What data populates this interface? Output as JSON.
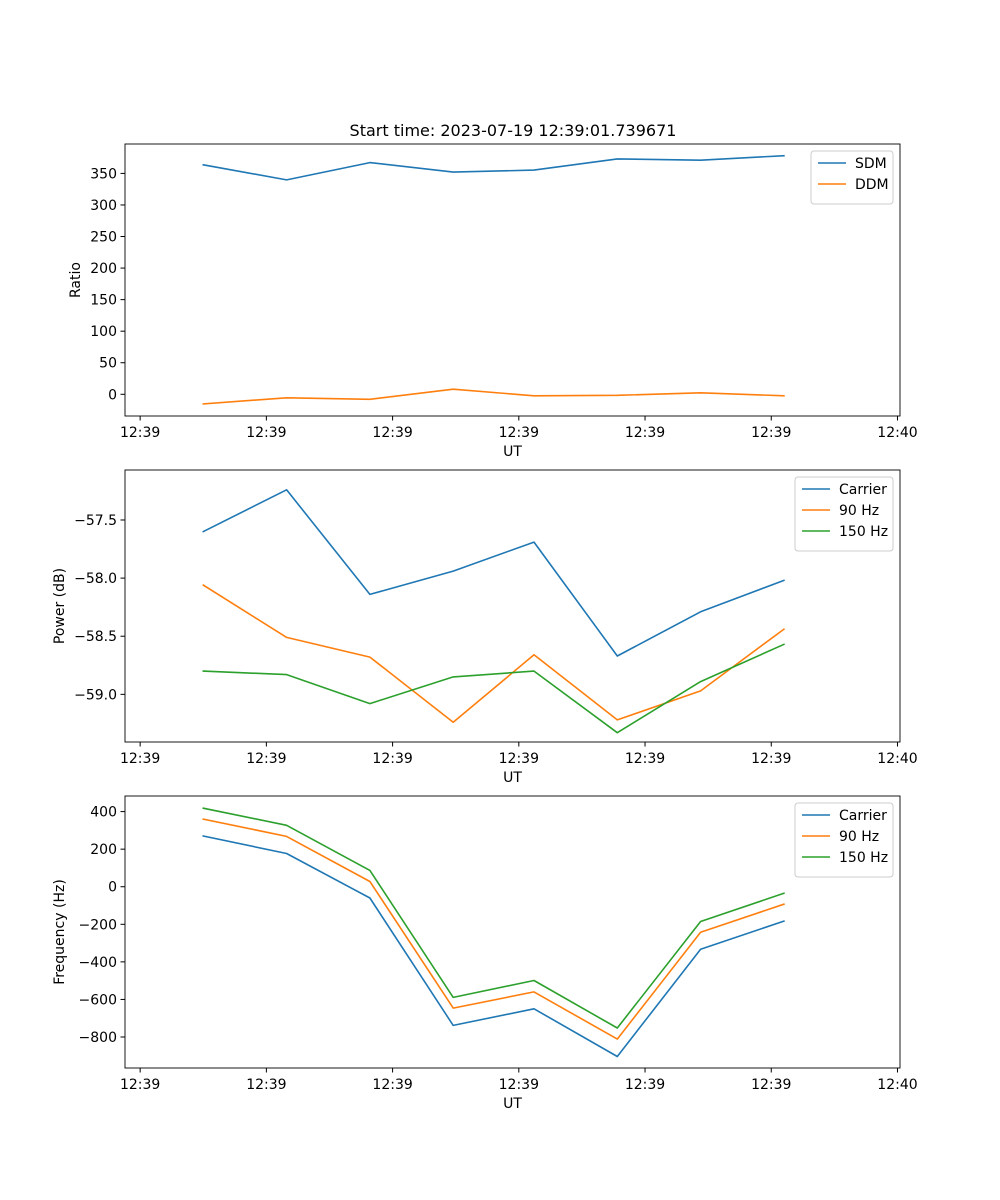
{
  "figure": {
    "title": "Start time: 2023-07-19 12:39:01.739671"
  },
  "chart_data": [
    {
      "type": "line",
      "title": "Start time: 2023-07-19 12:39:01.739671",
      "xlabel": "UT",
      "ylabel": "Ratio",
      "x_tick_labels": [
        "12:39",
        "12:39",
        "12:39",
        "12:39",
        "12:39",
        "12:39",
        "12:40"
      ],
      "x_ticks": [
        0,
        5,
        10,
        15,
        20,
        25,
        30
      ],
      "xlim": [
        -0.6,
        30.1
      ],
      "x": [
        2.5,
        5.8,
        9.1,
        12.4,
        15.6,
        18.9,
        22.2,
        25.5
      ],
      "y_ticks": [
        0,
        50,
        100,
        150,
        200,
        250,
        300,
        350
      ],
      "ylim": [
        -34.4,
        396.6
      ],
      "series": [
        {
          "name": "SDM",
          "color": "#1f77b4",
          "values": [
            363.7,
            339.7,
            367.2,
            352.0,
            355.2,
            373.0,
            371.0,
            378.0
          ]
        },
        {
          "name": "DDM",
          "color": "#ff7f0e",
          "values": [
            -15.2,
            -5.6,
            -7.9,
            8.0,
            -2.4,
            -1.6,
            2.4,
            -2.4
          ]
        }
      ],
      "legend": "top-right"
    },
    {
      "type": "line",
      "xlabel": "UT",
      "ylabel": "Power (dB)",
      "x_tick_labels": [
        "12:39",
        "12:39",
        "12:39",
        "12:39",
        "12:39",
        "12:39",
        "12:40"
      ],
      "x_ticks": [
        0,
        5,
        10,
        15,
        20,
        25,
        30
      ],
      "xlim": [
        -0.6,
        30.1
      ],
      "x": [
        2.5,
        5.8,
        9.1,
        12.4,
        15.6,
        18.9,
        22.2,
        25.5
      ],
      "y_ticks": [
        -57.5,
        -58.0,
        -58.5,
        -59.0
      ],
      "y_tick_labels": [
        "−57.5",
        "−58.0",
        "−58.5",
        "−59.0"
      ],
      "ylim": [
        -59.41,
        -57.07
      ],
      "series": [
        {
          "name": "Carrier",
          "color": "#1f77b4",
          "values": [
            -57.6,
            -57.24,
            -58.14,
            -57.94,
            -57.69,
            -58.67,
            -58.29,
            -58.02
          ]
        },
        {
          "name": "90 Hz",
          "color": "#ff7f0e",
          "values": [
            -58.06,
            -58.51,
            -58.68,
            -59.24,
            -58.66,
            -59.22,
            -58.97,
            -58.44
          ]
        },
        {
          "name": "150 Hz",
          "color": "#2ca02c",
          "values": [
            -58.8,
            -58.83,
            -59.08,
            -58.85,
            -58.8,
            -59.33,
            -58.89,
            -58.57
          ]
        }
      ],
      "legend": "top-right"
    },
    {
      "type": "line",
      "xlabel": "UT",
      "ylabel": "Frequency (Hz)",
      "x_tick_labels": [
        "12:39",
        "12:39",
        "12:39",
        "12:39",
        "12:39",
        "12:39",
        "12:40"
      ],
      "x_ticks": [
        0,
        5,
        10,
        15,
        20,
        25,
        30
      ],
      "xlim": [
        -0.6,
        30.1
      ],
      "x": [
        2.5,
        5.8,
        9.1,
        12.4,
        15.6,
        18.9,
        22.2,
        25.5
      ],
      "y_ticks": [
        400,
        200,
        0,
        -200,
        -400,
        -600,
        -800
      ],
      "y_tick_labels": [
        "400",
        "200",
        "0",
        "−200",
        "−400",
        "−600",
        "−800"
      ],
      "ylim": [
        -965,
        483
      ],
      "series": [
        {
          "name": "Carrier",
          "color": "#1f77b4",
          "values": [
            270,
            177,
            -60,
            -738,
            -650,
            -904,
            -333,
            -183
          ]
        },
        {
          "name": "90 Hz",
          "color": "#ff7f0e",
          "values": [
            360,
            268,
            28,
            -646,
            -560,
            -811,
            -242,
            -93
          ]
        },
        {
          "name": "150 Hz",
          "color": "#2ca02c",
          "values": [
            418,
            327,
            87,
            -589,
            -499,
            -752,
            -185,
            -35
          ]
        }
      ],
      "legend": "top-right"
    }
  ]
}
